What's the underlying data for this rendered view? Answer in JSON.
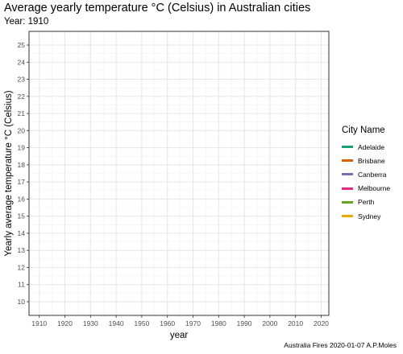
{
  "chart_data": {
    "type": "line",
    "title": "Average yearly temperature °C (Celsius) in Australian cities",
    "subtitle": "Year: 1910",
    "xlabel": "year",
    "ylabel": "Yearly average temperature °C (Celsius)",
    "x_ticks": [
      1910,
      1920,
      1930,
      1940,
      1950,
      1960,
      1970,
      1980,
      1990,
      2000,
      2010,
      2020
    ],
    "y_ticks": [
      10,
      11,
      12,
      13,
      14,
      15,
      16,
      17,
      18,
      19,
      20,
      21,
      22,
      23,
      24,
      25
    ],
    "xlim": [
      1906,
      2023
    ],
    "ylim": [
      9.2,
      25.8
    ],
    "grid": true,
    "legend_title": "City Name",
    "legend_position": "right",
    "series": [
      {
        "name": "Adelaide",
        "color": "#1B9E77",
        "x": [],
        "y": []
      },
      {
        "name": "Brisbane",
        "color": "#D95F02",
        "x": [],
        "y": []
      },
      {
        "name": "Canberra",
        "color": "#7570B3",
        "x": [],
        "y": []
      },
      {
        "name": "Melbourne",
        "color": "#E7298A",
        "x": [],
        "y": []
      },
      {
        "name": "Perth",
        "color": "#66A61E",
        "x": [],
        "y": []
      },
      {
        "name": "Sydney",
        "color": "#E6AB02",
        "x": [],
        "y": []
      }
    ],
    "caption": "Australia Fires 2020-01-07 A.P.Moles"
  }
}
